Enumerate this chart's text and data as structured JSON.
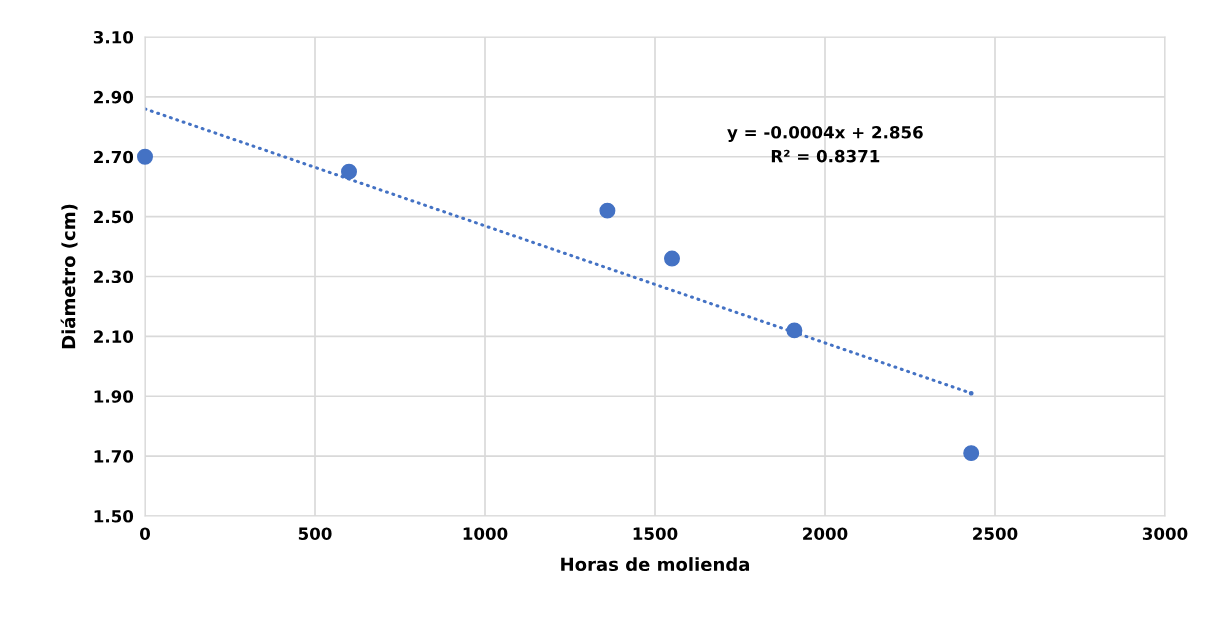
{
  "chart_data": {
    "type": "scatter",
    "xlabel": "Horas de molienda",
    "ylabel": "Diámetro (cm)",
    "xlim": [
      0,
      3000
    ],
    "xticks": [
      0,
      500,
      1000,
      1500,
      2000,
      2500,
      3000
    ],
    "ylim": [
      1.5,
      3.1
    ],
    "yticks": [
      {
        "value": 1.5,
        "label": "1.50"
      },
      {
        "value": 1.7,
        "label": "1.70"
      },
      {
        "value": 1.9,
        "label": "1.90"
      },
      {
        "value": 2.1,
        "label": "2.10"
      },
      {
        "value": 2.3,
        "label": "2.30"
      },
      {
        "value": 2.5,
        "label": "2.50"
      },
      {
        "value": 2.7,
        "label": "2.70"
      },
      {
        "value": 2.9,
        "label": "2.90"
      },
      {
        "value": 3.1,
        "label": "3.10"
      }
    ],
    "grid": true,
    "legend": false,
    "series": [
      {
        "color": "#4472c4",
        "marker": "circle",
        "x": [
          0,
          600,
          1360,
          1550,
          1910,
          2430
        ],
        "values": [
          2.7,
          2.65,
          2.52,
          2.36,
          2.12,
          1.71
        ]
      },
      {
        "type": "line",
        "color": "#4472c4",
        "line_style": "dotted",
        "marker": "none",
        "x": [
          0,
          2430
        ],
        "values": [
          2.86,
          1.91
        ]
      }
    ],
    "annotations": [
      "y = -0.0004x + 2.856\nR² = 0.8371"
    ]
  }
}
